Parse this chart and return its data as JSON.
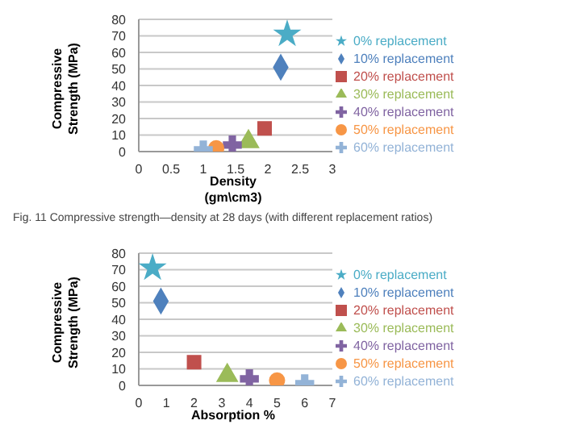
{
  "chart_data": [
    {
      "type": "scatter",
      "xlabel": "Density (gm\\cm3)",
      "ylabel": "Compressive Strength (MPa)",
      "xlim": [
        0,
        3
      ],
      "xticks": [
        0,
        0.5,
        1,
        1.5,
        2,
        2.5,
        3
      ],
      "ylim": [
        0,
        80
      ],
      "yticks": [
        0,
        10,
        20,
        30,
        40,
        50,
        60,
        70,
        80
      ],
      "grid": "y",
      "legend": "right",
      "annotations": [
        "Fig. 11 Compressive strength—density at 28 days (with different replacement ratios)"
      ],
      "series": [
        {
          "name": "0% replacement",
          "color": "#4bacc6",
          "marker": "star",
          "x": [
            2.3
          ],
          "values": [
            71
          ]
        },
        {
          "name": "10% replacement",
          "color": "#4f81bd",
          "marker": "diamond",
          "x": [
            2.2
          ],
          "values": [
            51
          ]
        },
        {
          "name": "20% replacement",
          "color": "#c0504d",
          "marker": "square",
          "x": [
            1.95
          ],
          "values": [
            14
          ]
        },
        {
          "name": "30% replacement",
          "color": "#9bbb59",
          "marker": "triangle",
          "x": [
            1.7
          ],
          "values": [
            6
          ]
        },
        {
          "name": "40% replacement",
          "color": "#8064a2",
          "marker": "cross",
          "x": [
            1.45
          ],
          "values": [
            4
          ]
        },
        {
          "name": "50% replacement",
          "color": "#f79646",
          "marker": "circle",
          "x": [
            1.2
          ],
          "values": [
            2
          ]
        },
        {
          "name": "60% replacement",
          "color": "#93b3d7",
          "marker": "cross",
          "x": [
            1.0
          ],
          "values": [
            1
          ]
        }
      ]
    },
    {
      "type": "scatter",
      "xlabel": "Absorption %",
      "ylabel": "Compressive Strength (MPa)",
      "xlim": [
        0,
        7
      ],
      "xticks": [
        0,
        1,
        2,
        3,
        4,
        5,
        6,
        7
      ],
      "ylim": [
        0,
        80
      ],
      "yticks": [
        0,
        10,
        20,
        30,
        40,
        50,
        60,
        70,
        80
      ],
      "grid": "y",
      "legend": "right",
      "series": [
        {
          "name": "0% replacement",
          "color": "#4bacc6",
          "marker": "star",
          "x": [
            0.5
          ],
          "values": [
            71
          ]
        },
        {
          "name": "10% replacement",
          "color": "#4f81bd",
          "marker": "diamond",
          "x": [
            0.8
          ],
          "values": [
            51
          ]
        },
        {
          "name": "20% replacement",
          "color": "#c0504d",
          "marker": "square",
          "x": [
            2
          ],
          "values": [
            14
          ]
        },
        {
          "name": "30% replacement",
          "color": "#9bbb59",
          "marker": "triangle",
          "x": [
            3.2
          ],
          "values": [
            6
          ]
        },
        {
          "name": "40% replacement",
          "color": "#8064a2",
          "marker": "cross",
          "x": [
            4
          ],
          "values": [
            4
          ]
        },
        {
          "name": "50% replacement",
          "color": "#f79646",
          "marker": "circle",
          "x": [
            5
          ],
          "values": [
            3
          ]
        },
        {
          "name": "60% replacement",
          "color": "#93b3d7",
          "marker": "cross",
          "x": [
            6
          ],
          "values": [
            1
          ]
        }
      ]
    }
  ]
}
